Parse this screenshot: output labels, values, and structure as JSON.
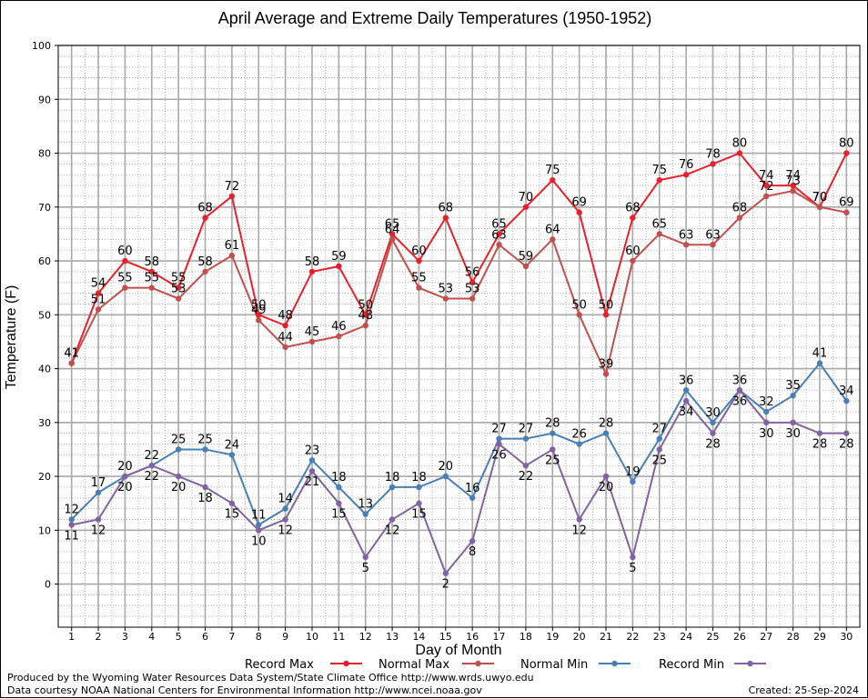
{
  "chart_data": {
    "type": "line",
    "title": "April Average and Extreme Daily Temperatures (1950-1952)",
    "xlabel": "Day of Month",
    "ylabel": "Temperature (F)",
    "ylim": [
      -8,
      100
    ],
    "yticks": [
      0,
      10,
      20,
      30,
      40,
      50,
      60,
      70,
      80,
      90,
      100
    ],
    "grid": true,
    "legend_position": "bottom",
    "x": [
      1,
      2,
      3,
      4,
      5,
      6,
      7,
      8,
      9,
      10,
      11,
      12,
      13,
      14,
      15,
      16,
      17,
      18,
      19,
      20,
      21,
      22,
      23,
      24,
      25,
      26,
      27,
      28,
      29,
      30
    ],
    "series": [
      {
        "name": "Record Max",
        "color": "#e8202a",
        "values": [
          41,
          54,
          60,
          58,
          55,
          68,
          72,
          50,
          48,
          58,
          59,
          50,
          65,
          60,
          68,
          56,
          65,
          70,
          75,
          69,
          50,
          68,
          75,
          76,
          78,
          80,
          74,
          74,
          70,
          80
        ]
      },
      {
        "name": "Normal Max",
        "color": "#c0504d",
        "values": [
          41,
          51,
          55,
          55,
          53,
          58,
          61,
          49,
          44,
          45,
          46,
          48,
          64,
          55,
          53,
          53,
          63,
          59,
          64,
          50,
          39,
          60,
          65,
          63,
          63,
          68,
          72,
          73,
          70,
          69
        ]
      },
      {
        "name": "Normal Min",
        "color": "#4a7fb5",
        "values": [
          12,
          17,
          20,
          22,
          25,
          25,
          24,
          11,
          14,
          23,
          18,
          13,
          18,
          18,
          20,
          16,
          27,
          27,
          28,
          26,
          28,
          19,
          27,
          36,
          30,
          36,
          32,
          35,
          41,
          34
        ]
      },
      {
        "name": "Record Min",
        "color": "#8064a2",
        "values": [
          11,
          12,
          20,
          22,
          20,
          18,
          15,
          10,
          12,
          21,
          15,
          5,
          12,
          15,
          2,
          8,
          26,
          22,
          25,
          12,
          20,
          5,
          25,
          34,
          28,
          36,
          30,
          30,
          28,
          28
        ]
      }
    ]
  },
  "footer": {
    "line1": "Produced by the Wyoming Water Resources Data System/State Climate Office http://www.wrds.uwyo.edu",
    "line2": "Data courtesy NOAA National Centers for Environmental Information http://www.ncei.noaa.gov",
    "created": "Created:  25-Sep-2024"
  }
}
